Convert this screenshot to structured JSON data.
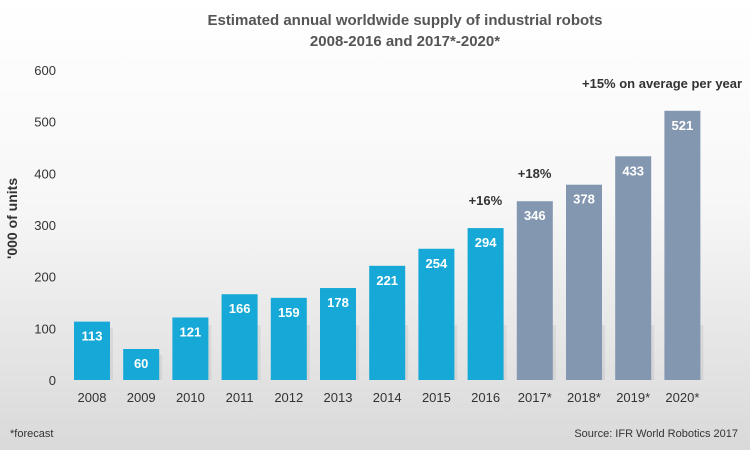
{
  "chart_data": {
    "type": "bar",
    "title": "Estimated annual worldwide supply of industrial robots",
    "subtitle": "2008-2016 and 2017*-2020*",
    "ylabel": "'000 of units",
    "xlabel": "",
    "ylim": [
      0,
      600
    ],
    "yticks": [
      0,
      100,
      200,
      300,
      400,
      500,
      600
    ],
    "grid": false,
    "categories": [
      "2008",
      "2009",
      "2010",
      "2011",
      "2012",
      "2013",
      "2014",
      "2015",
      "2016",
      "2017*",
      "2018*",
      "2019*",
      "2020*"
    ],
    "values": [
      113,
      60,
      121,
      166,
      159,
      178,
      221,
      254,
      294,
      346,
      378,
      433,
      521
    ],
    "forecast": [
      false,
      false,
      false,
      false,
      false,
      false,
      false,
      false,
      false,
      true,
      true,
      true,
      true
    ],
    "colors": {
      "actual": "#16a8d6",
      "forecast": "#8497b0",
      "data_label": "#ffffff"
    },
    "annotations": [
      {
        "text": "+16%",
        "category": "2016"
      },
      {
        "text": "+18%",
        "category": "2017*"
      },
      {
        "text": "+15% on average per year",
        "category": "2020*"
      }
    ]
  },
  "footnote": "*forecast",
  "source": "Source: IFR World Robotics 2017"
}
